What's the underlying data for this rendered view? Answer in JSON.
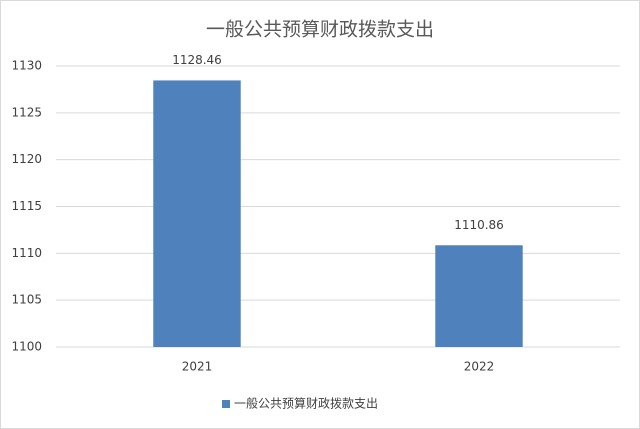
{
  "chart_data": {
    "type": "bar",
    "title": "一般公共预算财政拨款支出",
    "categories": [
      "2021",
      "2022"
    ],
    "series": [
      {
        "name": "一般公共预算财政拨款支出",
        "color": "#4f81bd",
        "values": [
          1128.46,
          1110.86
        ]
      }
    ],
    "ylim": [
      1100,
      1130
    ],
    "yticks": [
      1100,
      1105,
      1110,
      1115,
      1120,
      1125,
      1130
    ],
    "grid": true,
    "legend": "bottom"
  }
}
